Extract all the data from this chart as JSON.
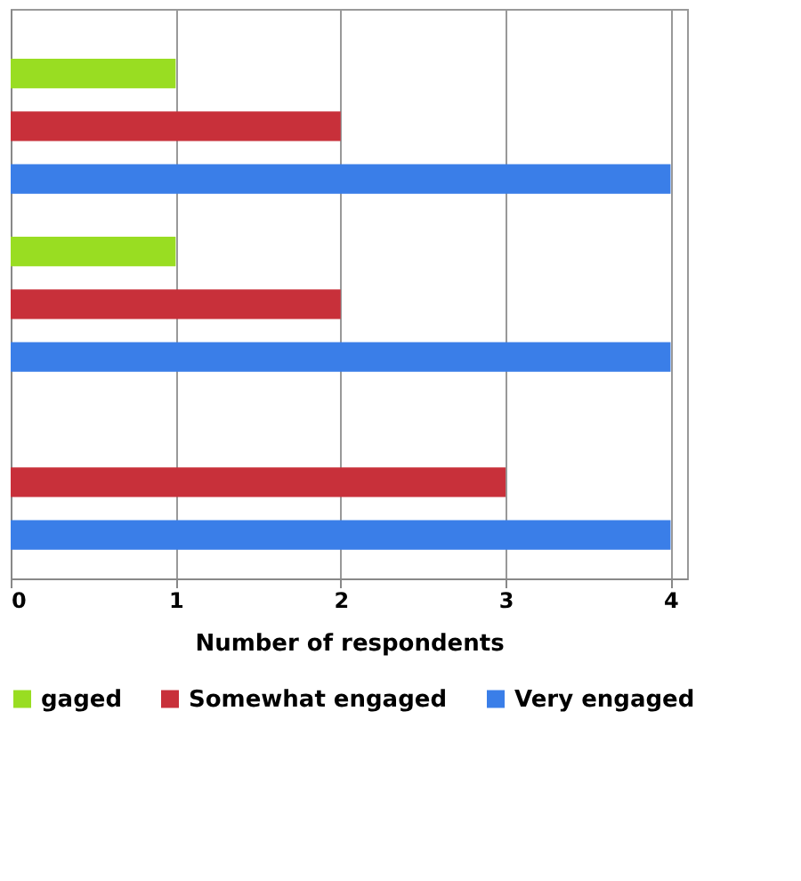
{
  "chart_data": {
    "type": "bar",
    "orientation": "horizontal",
    "categories": [
      null,
      null,
      null
    ],
    "series": [
      {
        "name": "gaged",
        "color": "#99dd22",
        "values": [
          1,
          1,
          0
        ]
      },
      {
        "name": "Somewhat engaged",
        "color": "#c8303a",
        "values": [
          2,
          2,
          3
        ]
      },
      {
        "name": "Very engaged",
        "color": "#3a7ee8",
        "values": [
          4,
          4,
          4
        ]
      }
    ],
    "xlabel": "Number of respondents",
    "xlim": [
      0,
      4.1
    ],
    "xticks": [
      0,
      1,
      2,
      3,
      4
    ],
    "grid": "x",
    "legend": "bottom",
    "tick_labels": "x"
  }
}
